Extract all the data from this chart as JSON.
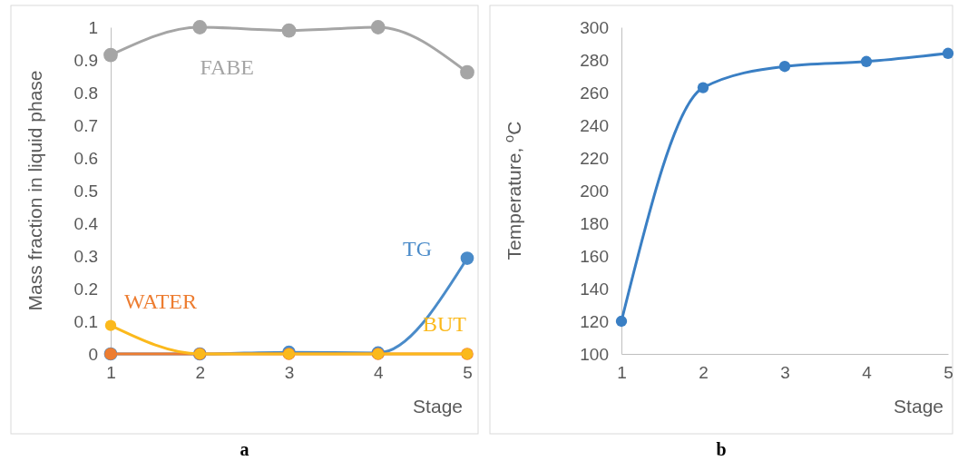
{
  "chart_data": [
    {
      "type": "line",
      "xlabel": "Stage",
      "ylabel": "Mass fraction in liquid phase",
      "x": [
        1,
        2,
        3,
        4,
        5
      ],
      "xlim": [
        1,
        5
      ],
      "xticks": [
        1,
        2,
        3,
        4,
        5
      ],
      "ylim": [
        0,
        1
      ],
      "yticks": [
        0,
        0.1,
        0.2,
        0.3,
        0.4,
        0.5,
        0.6,
        0.7,
        0.8,
        0.9,
        1
      ],
      "grid": false,
      "marker": "circle",
      "line_style": "solid",
      "annotations": [
        "a"
      ],
      "series": [
        {
          "name": "FABE",
          "color": "#a5a5a5",
          "values": [
            0.915,
            1.0,
            0.99,
            1.0,
            0.862
          ]
        },
        {
          "name": "TG",
          "color": "#4a8bc9",
          "values": [
            0,
            0,
            0.005,
            0.003,
            0.293
          ]
        },
        {
          "name": "WATER",
          "color": "#ed7d31",
          "values": [
            0,
            0,
            0,
            0,
            0
          ]
        },
        {
          "name": "BUT",
          "color": "#fbb91c",
          "values": [
            0.087,
            0,
            0,
            0,
            0
          ]
        }
      ]
    },
    {
      "type": "line",
      "xlabel": "Stage",
      "ylabel": "Temperature, $^{o}$C",
      "x": [
        1,
        2,
        3,
        4,
        5
      ],
      "xlim": [
        1,
        5
      ],
      "xticks": [
        1,
        2,
        3,
        4,
        5
      ],
      "ylim": [
        100,
        300
      ],
      "yticks": [
        100,
        120,
        140,
        160,
        180,
        200,
        220,
        240,
        260,
        280,
        300
      ],
      "grid": false,
      "marker": "circle",
      "line_style": "solid",
      "annotations": [
        "b"
      ],
      "series": [
        {
          "color": "#3a7fc4",
          "values": [
            120,
            263,
            276,
            279,
            284
          ]
        }
      ]
    }
  ]
}
